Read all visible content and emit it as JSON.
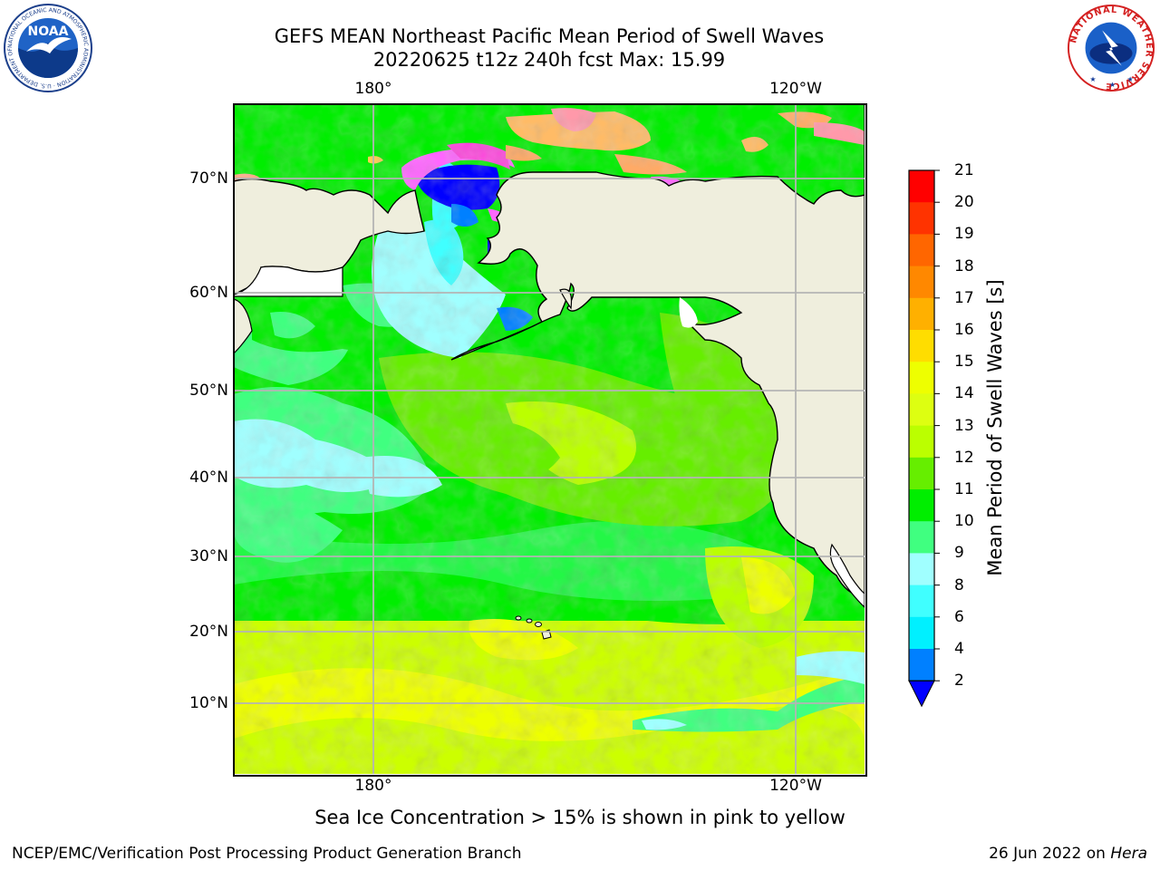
{
  "header": {
    "title_line1": "GEFS MEAN Northeast Pacific Mean Period of Swell Waves",
    "title_line2": "20220625 t12z 240h fcst   Max: 15.99"
  },
  "map": {
    "lon_labels": [
      "180°",
      "120°W"
    ],
    "lat_labels": [
      "70°N",
      "60°N",
      "50°N",
      "40°N",
      "30°N",
      "20°N",
      "10°N"
    ],
    "ocean_colors": {
      "cyan_light": "#a0ffff",
      "cyan": "#40ffff",
      "teal_green": "#40ff80",
      "green": "#00ee00",
      "lime": "#66ee00",
      "yellow_green": "#c0ff00",
      "yellow": "#eeff00",
      "blue": "#0080ff",
      "dark_blue": "#0000ff"
    },
    "land_color": "#efeedd",
    "sea_ice_colors": [
      "#ff66ff",
      "#ffaa66",
      "#ffcc55"
    ]
  },
  "colorbar": {
    "title": "Mean Period of Swell Waves [s]",
    "ticks": [
      "21",
      "20",
      "19",
      "18",
      "17",
      "16",
      "15",
      "14",
      "13",
      "12",
      "11",
      "10",
      "9",
      "8",
      "6",
      "4",
      "2"
    ],
    "bins": [
      {
        "from": 20,
        "to": 21,
        "color": "#ff0000"
      },
      {
        "from": 19,
        "to": 20,
        "color": "#ff3300"
      },
      {
        "from": 18,
        "to": 19,
        "color": "#ff6600"
      },
      {
        "from": 17,
        "to": 18,
        "color": "#ff8800"
      },
      {
        "from": 16,
        "to": 17,
        "color": "#ffb000"
      },
      {
        "from": 15,
        "to": 16,
        "color": "#ffdd00"
      },
      {
        "from": 14,
        "to": 15,
        "color": "#eeff00"
      },
      {
        "from": 13,
        "to": 14,
        "color": "#ddff11"
      },
      {
        "from": 12,
        "to": 13,
        "color": "#bbff00"
      },
      {
        "from": 11,
        "to": 12,
        "color": "#66ee00"
      },
      {
        "from": 10,
        "to": 11,
        "color": "#00ee00"
      },
      {
        "from": 9,
        "to": 10,
        "color": "#40ff80"
      },
      {
        "from": 8,
        "to": 9,
        "color": "#a0ffff"
      },
      {
        "from": 6,
        "to": 8,
        "color": "#40ffff"
      },
      {
        "from": 4,
        "to": 6,
        "color": "#00f0ff"
      },
      {
        "from": 2,
        "to": 4,
        "color": "#0080ff"
      }
    ],
    "under_color": "#0000ff"
  },
  "note": "Sea Ice Concentration > 15% is shown in pink to yellow",
  "footer": {
    "left": "NCEP/EMC/Verification Post Processing Product Generation Branch",
    "right_date": "26 Jun 2022 on ",
    "right_host": "Hera"
  },
  "logos": {
    "noaa_text": "NOAA",
    "noaa_ring_text": "NATIONAL OCEANIC AND ATMOSPHERIC ADMINISTRATION · U.S. DEPARTMENT OF COMMERCE",
    "nws_ring_text": "NATIONAL WEATHER SERVICE"
  }
}
